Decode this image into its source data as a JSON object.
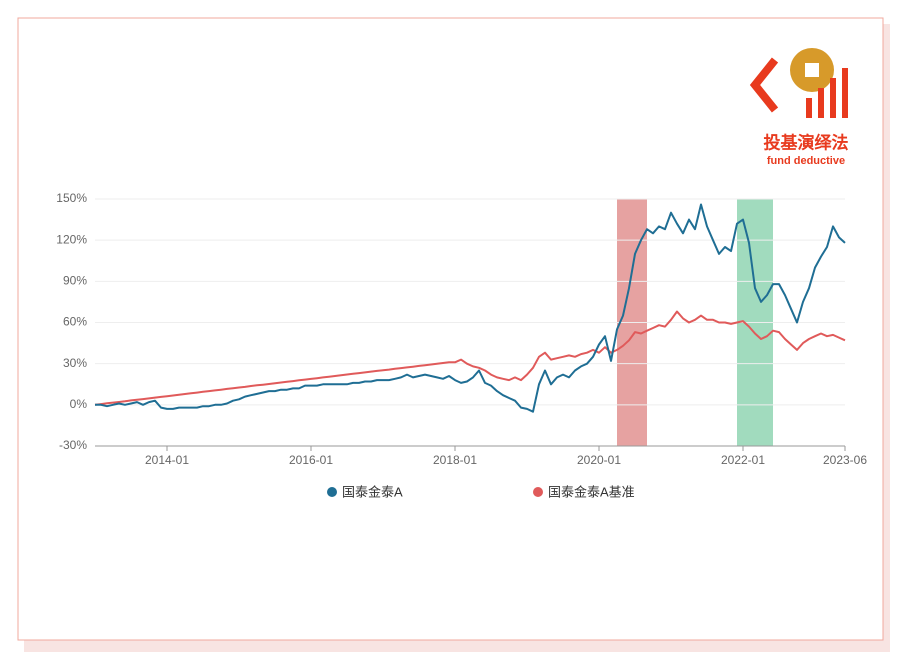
{
  "brand": {
    "name": "投基演绎法",
    "slogan": "fund deductive"
  },
  "chart_data": {
    "type": "line",
    "x": [
      "2013-01",
      "2013-02",
      "2013-03",
      "2013-04",
      "2013-05",
      "2013-06",
      "2013-07",
      "2013-08",
      "2013-09",
      "2013-10",
      "2013-11",
      "2013-12",
      "2014-01",
      "2014-02",
      "2014-03",
      "2014-04",
      "2014-05",
      "2014-06",
      "2014-07",
      "2014-08",
      "2014-09",
      "2014-10",
      "2014-11",
      "2014-12",
      "2015-01",
      "2015-02",
      "2015-03",
      "2015-04",
      "2015-05",
      "2015-06",
      "2015-07",
      "2015-08",
      "2015-09",
      "2015-10",
      "2015-11",
      "2015-12",
      "2016-01",
      "2016-02",
      "2016-03",
      "2016-04",
      "2016-05",
      "2016-06",
      "2016-07",
      "2016-08",
      "2016-09",
      "2016-10",
      "2016-11",
      "2016-12",
      "2017-01",
      "2017-02",
      "2017-03",
      "2017-04",
      "2017-05",
      "2017-06",
      "2017-07",
      "2017-08",
      "2017-09",
      "2017-10",
      "2017-11",
      "2017-12",
      "2018-01",
      "2018-02",
      "2018-03",
      "2018-04",
      "2018-05",
      "2018-06",
      "2018-07",
      "2018-08",
      "2018-09",
      "2018-10",
      "2018-11",
      "2018-12",
      "2019-01",
      "2019-02",
      "2019-03",
      "2019-04",
      "2019-05",
      "2019-06",
      "2019-07",
      "2019-08",
      "2019-09",
      "2019-10",
      "2019-11",
      "2019-12",
      "2020-01",
      "2020-02",
      "2020-03",
      "2020-04",
      "2020-05",
      "2020-06",
      "2020-07",
      "2020-08",
      "2020-09",
      "2020-10",
      "2020-11",
      "2020-12",
      "2021-01",
      "2021-02",
      "2021-03",
      "2021-04",
      "2021-05",
      "2021-06",
      "2021-07",
      "2021-08",
      "2021-09",
      "2021-10",
      "2021-11",
      "2021-12",
      "2022-01",
      "2022-02",
      "2022-03",
      "2022-04",
      "2022-05",
      "2022-06",
      "2022-07",
      "2022-08",
      "2022-09",
      "2022-10",
      "2022-11",
      "2022-12",
      "2023-01",
      "2023-02",
      "2023-03",
      "2023-04",
      "2023-05",
      "2023-06"
    ],
    "series": [
      {
        "name": "国泰金泰A",
        "color": "#1f6e94",
        "values": [
          0,
          0,
          -1,
          0,
          1,
          0,
          1,
          2,
          0,
          2,
          3,
          -2,
          -3,
          -3,
          -2,
          -2,
          -2,
          -2,
          -1,
          -1,
          0,
          0,
          1,
          3,
          4,
          6,
          7,
          8,
          9,
          10,
          10,
          11,
          11,
          12,
          12,
          14,
          14,
          14,
          15,
          15,
          15,
          15,
          15,
          16,
          16,
          17,
          17,
          18,
          18,
          18,
          19,
          20,
          22,
          20,
          21,
          22,
          21,
          20,
          19,
          21,
          18,
          16,
          17,
          20,
          25,
          16,
          14,
          10,
          7,
          5,
          3,
          -2,
          -3,
          -5,
          15,
          25,
          15,
          20,
          22,
          20,
          25,
          28,
          30,
          35,
          44,
          50,
          32,
          55,
          65,
          85,
          110,
          120,
          128,
          125,
          130,
          128,
          140,
          132,
          125,
          135,
          128,
          146,
          130,
          120,
          110,
          115,
          112,
          132,
          135,
          118,
          85,
          75,
          80,
          88,
          88,
          80,
          70,
          60,
          75,
          85,
          100,
          108,
          115,
          130,
          122,
          118
        ]
      },
      {
        "name": "国泰金泰A基准",
        "color": "#e05a5a",
        "values": [
          0,
          0.5,
          1.1,
          1.6,
          2.1,
          2.6,
          3.2,
          3.7,
          4.2,
          4.7,
          5.3,
          5.8,
          6.3,
          6.8,
          7.4,
          7.9,
          8.4,
          8.9,
          9.5,
          10,
          10.5,
          11,
          11.6,
          12.1,
          12.6,
          13.1,
          13.7,
          14.2,
          14.7,
          15.2,
          15.8,
          16.3,
          16.8,
          17.3,
          17.9,
          18.4,
          18.9,
          19.4,
          20,
          20.5,
          21,
          21.5,
          22.1,
          22.6,
          23.1,
          23.6,
          24.2,
          24.7,
          25.2,
          25.7,
          26.3,
          26.8,
          27.3,
          27.8,
          28.4,
          28.9,
          29.4,
          29.9,
          30.5,
          31,
          31,
          33,
          30,
          28,
          27,
          25,
          22,
          20,
          19,
          18,
          20,
          18,
          22,
          27,
          35,
          38,
          33,
          34,
          35,
          36,
          35,
          37,
          38,
          40,
          38,
          42,
          38,
          40,
          43,
          47,
          53,
          52,
          54,
          56,
          58,
          57,
          62,
          68,
          63,
          60,
          62,
          65,
          62,
          62,
          60,
          60,
          59,
          60,
          61,
          57,
          52,
          48,
          50,
          54,
          53,
          48,
          44,
          40,
          45,
          48,
          50,
          52,
          50,
          51,
          49,
          47
        ]
      }
    ],
    "ylim": [
      -30,
      150
    ],
    "yticks": [
      {
        "value": -30,
        "label": "-30%"
      },
      {
        "value": 0,
        "label": "0%"
      },
      {
        "value": 30,
        "label": "30%"
      },
      {
        "value": 60,
        "label": "60%"
      },
      {
        "value": 90,
        "label": "90%"
      },
      {
        "value": 120,
        "label": "120%"
      },
      {
        "value": 150,
        "label": "150%"
      }
    ],
    "xticks": [
      "2014-01",
      "2016-01",
      "2018-01",
      "2020-01",
      "2022-01",
      "2023-06"
    ],
    "grid": true,
    "highlights": [
      {
        "from": "2020-04",
        "to": "2020-09",
        "color": "#d9706f"
      },
      {
        "from": "2021-12",
        "to": "2022-06",
        "color": "#6fc79b"
      }
    ]
  }
}
